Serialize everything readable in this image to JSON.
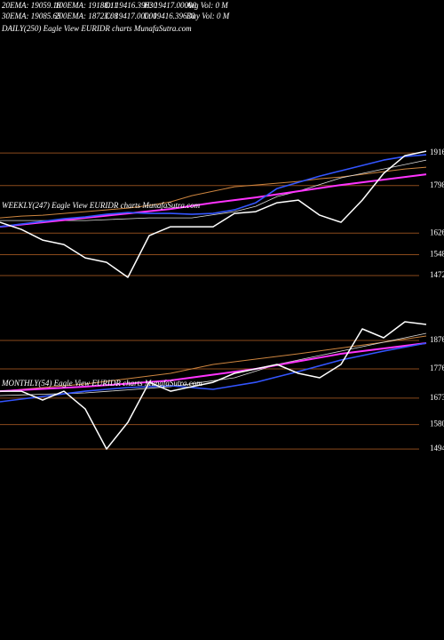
{
  "header": {
    "line1": [
      "20EMA: 19059.18",
      "100EMA: 19188.11",
      "O: 19416.39630",
      "H: 19417.00000",
      "Avg Vol: 0  M"
    ],
    "line2": [
      "30EMA: 19085.65",
      "200EMA: 18723.08",
      "C: 19417.00000",
      "L: 19416.39630",
      "Day Vol: 0  M"
    ]
  },
  "daily_label": "DAILY(250) Eagle  View  EURIDR charts MunafaSutra.com",
  "chart_data": [
    {
      "type": "line",
      "title": "WEEKLY(247) Eagle  View  EURIDR charts MunafaSutra.com",
      "ylim": [
        14400,
        19550
      ],
      "yticks": [
        {
          "value": 19160,
          "label": "1916"
        },
        {
          "value": 17980,
          "label": "1798"
        },
        {
          "value": 16260,
          "label": "1626"
        },
        {
          "value": 15480,
          "label": "1548"
        },
        {
          "value": 14720,
          "label": "1472"
        }
      ],
      "grid_color": "#8b4a1c",
      "series": [
        {
          "color": "#cd853f",
          "width": 1,
          "values": [
            16812,
            16876,
            16908,
            16972,
            17037,
            17101,
            17166,
            17262,
            17391,
            17616,
            17777,
            17938,
            18002,
            18066,
            18131,
            18227,
            18291,
            18388,
            18484,
            18581,
            18645
          ]
        },
        {
          "color": "#dddddd",
          "width": 0.8,
          "values": [
            16715,
            16715,
            16715,
            16715,
            16715,
            16747,
            16779,
            16812,
            16812,
            16812,
            16924,
            17037,
            17230,
            17584,
            17777,
            18018,
            18259,
            18420,
            18581,
            18742,
            18903
          ]
        },
        {
          "color": "#ff33ff",
          "width": 2,
          "values": [
            16490,
            16570,
            16651,
            16731,
            16812,
            16892,
            16972,
            17053,
            17133,
            17246,
            17358,
            17455,
            17551,
            17664,
            17777,
            17889,
            18002,
            18098,
            18195,
            18291,
            18388
          ]
        },
        {
          "color": "#3355ff",
          "width": 1.6,
          "values": [
            16490,
            16586,
            16683,
            16779,
            16844,
            16940,
            17005,
            16972,
            16972,
            16940,
            16972,
            17101,
            17358,
            17873,
            18098,
            18323,
            18516,
            18709,
            18903,
            19031,
            19096
          ]
        },
        {
          "color": "#ffffff",
          "width": 1.5,
          "values": [
            16651,
            16393,
            16007,
            15846,
            15364,
            15203,
            14656,
            16168,
            16490,
            16490,
            16490,
            16972,
            17037,
            17358,
            17455,
            16908,
            16651,
            17455,
            18420,
            19063,
            19224
          ]
        }
      ]
    },
    {
      "type": "line",
      "title": "MONTHLY(54) Eagle  View  EURIDR charts MunafaSutra.com",
      "ylim": [
        14630,
        19480
      ],
      "yticks": [
        {
          "value": 18760,
          "label": "1876"
        },
        {
          "value": 17760,
          "label": "1776"
        },
        {
          "value": 16730,
          "label": "1673"
        },
        {
          "value": 15800,
          "label": "1580"
        },
        {
          "value": 14940,
          "label": "1494"
        }
      ],
      "grid_color": "#8b4a1c",
      "series": [
        {
          "color": "#cd853f",
          "width": 1,
          "values": [
            16975,
            17038,
            17101,
            17163,
            17226,
            17320,
            17414,
            17508,
            17602,
            17758,
            17915,
            18009,
            18103,
            18197,
            18290,
            18392,
            18494,
            18596,
            18697,
            18807,
            18917
          ]
        },
        {
          "color": "#dddddd",
          "width": 0.8,
          "values": [
            16819,
            16843,
            16866,
            16890,
            16913,
            16968,
            17022,
            17077,
            17132,
            17236,
            17343,
            17445,
            17680,
            17915,
            18071,
            18228,
            18384,
            18541,
            18697,
            18854,
            19010
          ]
        },
        {
          "color": "#ff33ff",
          "width": 2,
          "values": [
            16975,
            17014,
            17054,
            17093,
            17132,
            17187,
            17241,
            17296,
            17351,
            17453,
            17555,
            17656,
            17758,
            17891,
            18024,
            18157,
            18290,
            18384,
            18478,
            18572,
            18666
          ]
        },
        {
          "color": "#3355ff",
          "width": 1.6,
          "values": [
            16600,
            16694,
            16787,
            16881,
            16975,
            17038,
            17101,
            17132,
            17163,
            17101,
            17038,
            17163,
            17288,
            17476,
            17664,
            17868,
            18071,
            18228,
            18384,
            18525,
            18666
          ]
        },
        {
          "color": "#ffffff",
          "width": 1.5,
          "values": [
            16975,
            16975,
            16662,
            16975,
            16349,
            14940,
            15879,
            17288,
            16975,
            17132,
            17288,
            17602,
            17758,
            17915,
            17602,
            17445,
            17915,
            19167,
            18854,
            19418,
            19324
          ]
        }
      ]
    }
  ]
}
